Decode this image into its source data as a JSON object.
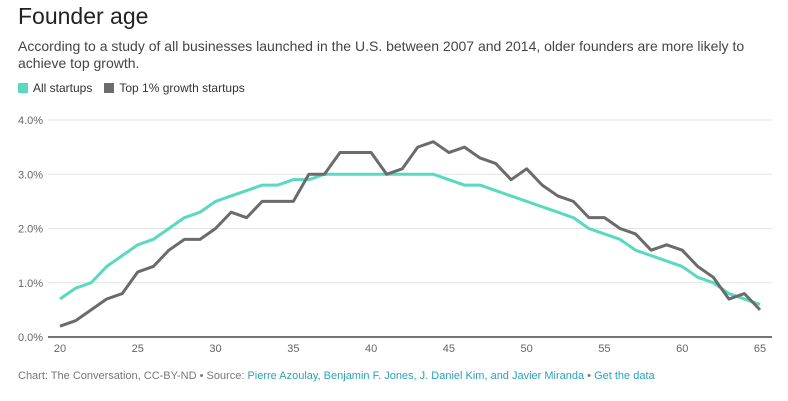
{
  "title": "Founder age",
  "subtitle": "According to a study of all businesses launched in the U.S. between 2007 and 2014, older founders are more likely to achieve top growth.",
  "footer": {
    "prefix": "Chart: The Conversation, CC-BY-ND • Source: ",
    "source": "Pierre Azoulay, Benjamin F. Jones, J. Daniel Kim, and Javier Miranda",
    "sep": " • ",
    "get_data": "Get the data"
  },
  "chart_data": {
    "type": "line",
    "title": "Founder age",
    "xlabel": "",
    "ylabel": "",
    "xlim": [
      20,
      65
    ],
    "ylim": [
      0,
      4
    ],
    "x_ticks": [
      "20",
      "25",
      "30",
      "35",
      "40",
      "45",
      "50",
      "55",
      "60",
      "65"
    ],
    "y_ticks": [
      "0.0%",
      "1.0%",
      "2.0%",
      "3.0%",
      "4.0%"
    ],
    "legend_position": "top-left",
    "x": [
      20,
      21,
      22,
      23,
      24,
      25,
      26,
      27,
      28,
      29,
      30,
      31,
      32,
      33,
      34,
      35,
      36,
      37,
      38,
      39,
      40,
      41,
      42,
      43,
      44,
      45,
      46,
      47,
      48,
      49,
      50,
      51,
      52,
      53,
      54,
      55,
      56,
      57,
      58,
      59,
      60,
      61,
      62,
      63,
      64,
      65
    ],
    "series": [
      {
        "name": "All startups",
        "color": "#5ad8c0",
        "values": [
          0.7,
          0.9,
          1.0,
          1.3,
          1.5,
          1.7,
          1.8,
          2.0,
          2.2,
          2.3,
          2.5,
          2.6,
          2.7,
          2.8,
          2.8,
          2.9,
          2.9,
          3.0,
          3.0,
          3.0,
          3.0,
          3.0,
          3.0,
          3.0,
          3.0,
          2.9,
          2.8,
          2.8,
          2.7,
          2.6,
          2.5,
          2.4,
          2.3,
          2.2,
          2.0,
          1.9,
          1.8,
          1.6,
          1.5,
          1.4,
          1.3,
          1.1,
          1.0,
          0.8,
          0.7,
          0.6
        ]
      },
      {
        "name": "Top 1% growth startups",
        "color": "#6b6b6b",
        "values": [
          0.2,
          0.3,
          0.5,
          0.7,
          0.8,
          1.2,
          1.3,
          1.6,
          1.8,
          1.8,
          2.0,
          2.3,
          2.2,
          2.5,
          2.5,
          2.5,
          3.0,
          3.0,
          3.4,
          3.4,
          3.4,
          3.0,
          3.1,
          3.5,
          3.6,
          3.4,
          3.5,
          3.3,
          3.2,
          2.9,
          3.1,
          2.8,
          2.6,
          2.5,
          2.2,
          2.2,
          2.0,
          1.9,
          1.6,
          1.7,
          1.6,
          1.3,
          1.1,
          0.7,
          0.8,
          0.5
        ]
      }
    ]
  }
}
